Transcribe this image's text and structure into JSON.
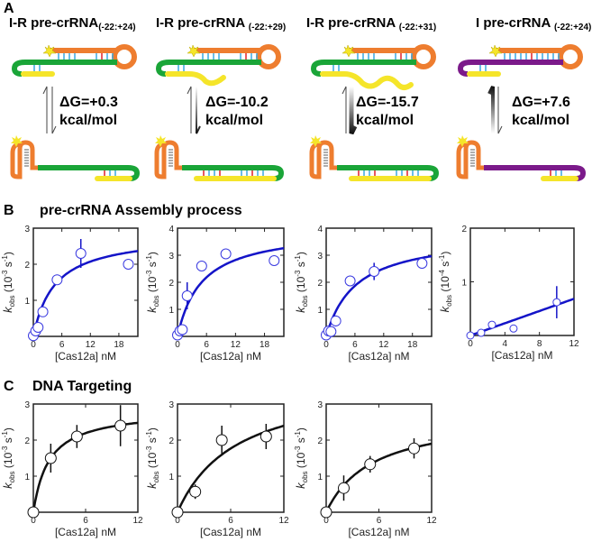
{
  "panel_a": {
    "label": "A",
    "columns": [
      {
        "title": "I-R pre-crRNA",
        "subscript": "(-22:+24)",
        "dg_line1": "ΔG=+0.3",
        "dg_line2": "kcal/mol",
        "stem_color": "#1aa538",
        "tail": "short"
      },
      {
        "title": "I-R pre-crRNA ",
        "subscript": "(-22:+29)",
        "dg_line1": "ΔG=-10.2",
        "dg_line2": "kcal/mol",
        "stem_color": "#1aa538",
        "tail": "medium"
      },
      {
        "title": "I-R pre-crRNA ",
        "subscript": "(-22:+31)",
        "dg_line1": "ΔG=-15.7",
        "dg_line2": "kcal/mol",
        "stem_color": "#1aa538",
        "tail": "long"
      },
      {
        "title": "I pre-crRNA ",
        "subscript": "(-22:+24)",
        "dg_line1": "ΔG=+7.6",
        "dg_line2": "kcal/mol",
        "stem_color": "#7b1a8a",
        "tail": "short"
      }
    ],
    "colors": {
      "orange": "#ee7d2f",
      "yellow": "#f5e52a",
      "blue_pair": "#3aa8e0",
      "red_pair": "#e0212a"
    }
  },
  "panel_b": {
    "label": "B",
    "title": "pre-crRNA Assembly process"
  },
  "panel_c": {
    "label": "C",
    "title": "DNA Targeting"
  },
  "chart_data": [
    {
      "panel": "B",
      "type": "scatter",
      "color": "#1414c8",
      "xlabel": "[Cas12a] nM",
      "ylabel": {
        "k": "k",
        "sub": "obs",
        "pre": " (10",
        "exp": "-3",
        "mid": " s",
        "exp2": "-1",
        "post": ")"
      },
      "xlim": [
        0,
        22
      ],
      "ylim": [
        0,
        3
      ],
      "xticks": [
        0,
        6,
        12,
        18
      ],
      "yticks": [
        1,
        2,
        3
      ],
      "x": [
        0,
        0.5,
        1,
        2,
        5,
        10,
        20
      ],
      "y": [
        0.02,
        0.15,
        0.25,
        0.68,
        1.57,
        2.3,
        2.0
      ],
      "yerr": [
        0,
        0,
        0,
        0,
        0,
        0.4,
        0
      ],
      "fit": {
        "model": "hyperbolic",
        "kmax": 2.85,
        "K": 4.5
      }
    },
    {
      "panel": "B",
      "type": "scatter",
      "color": "#1414c8",
      "xlabel": "[Cas12a] nM",
      "ylabel": {
        "k": "k",
        "sub": "obs",
        "pre": " (10",
        "exp": "-3",
        "mid": " s",
        "exp2": "-1",
        "post": ")"
      },
      "xlim": [
        0,
        22
      ],
      "ylim": [
        0,
        4
      ],
      "xticks": [
        0,
        6,
        12,
        18
      ],
      "yticks": [
        1,
        2,
        3,
        4
      ],
      "x": [
        0,
        0.5,
        1,
        2,
        5,
        10,
        20
      ],
      "y": [
        0.05,
        0.2,
        0.25,
        1.5,
        2.6,
        3.05,
        2.8
      ],
      "yerr": [
        0,
        0,
        0,
        0.5,
        0,
        0,
        0
      ],
      "fit": {
        "model": "hyperbolic",
        "kmax": 4.0,
        "K": 5.0
      }
    },
    {
      "panel": "B",
      "type": "scatter",
      "color": "#1414c8",
      "xlabel": "[Cas12a] nM",
      "ylabel": {
        "k": "k",
        "sub": "obs",
        "pre": " (10",
        "exp": "-3",
        "mid": " s",
        "exp2": "-1",
        "post": ")"
      },
      "xlim": [
        0,
        22
      ],
      "ylim": [
        0,
        4
      ],
      "xticks": [
        0,
        6,
        12,
        18
      ],
      "yticks": [
        1,
        2,
        3,
        4
      ],
      "x": [
        0,
        0.5,
        1,
        2,
        5,
        10,
        20
      ],
      "y": [
        0.05,
        0.2,
        0.18,
        0.57,
        2.05,
        2.4,
        2.7
      ],
      "yerr": [
        0,
        0,
        0,
        0.2,
        0,
        0.32,
        0
      ],
      "fit": {
        "model": "hyperbolic",
        "kmax": 3.8,
        "K": 6.2
      }
    },
    {
      "panel": "B",
      "type": "scatter",
      "color": "#1414c8",
      "xlabel": "[Cas12a] nM",
      "ylabel": {
        "k": "k",
        "sub": "obs",
        "pre": " (10",
        "exp": "-4",
        "mid": " s",
        "exp2": "-1",
        "post": ")"
      },
      "xlim": [
        0,
        12
      ],
      "ylim": [
        0,
        2
      ],
      "xticks": [
        0,
        4,
        8,
        12
      ],
      "yticks": [
        1,
        2
      ],
      "x": [
        0,
        1.25,
        2.5,
        5,
        10
      ],
      "y": [
        0,
        0.05,
        0.2,
        0.13,
        0.62
      ],
      "yerr": [
        0,
        0,
        0,
        0,
        0.3
      ],
      "fit": {
        "model": "linear",
        "slope": 0.057
      }
    },
    {
      "panel": "C",
      "type": "scatter",
      "color": "#111111",
      "xlabel": "[Cas12a] nM",
      "ylabel": {
        "k": "k",
        "sub": "obs",
        "pre": " (10",
        "exp": "-3",
        "mid": " s",
        "exp2": "-1",
        "post": ")"
      },
      "xlim": [
        0,
        12
      ],
      "ylim": [
        0,
        3
      ],
      "xticks": [
        0,
        6,
        12
      ],
      "yticks": [
        1,
        2,
        3
      ],
      "x": [
        0,
        2,
        5,
        10
      ],
      "y": [
        0,
        1.5,
        2.1,
        2.4
      ],
      "yerr": [
        0,
        0.4,
        0.32,
        0.57
      ],
      "fit": {
        "model": "hyperbolic",
        "kmax": 2.85,
        "K": 1.8
      }
    },
    {
      "panel": "C",
      "type": "scatter",
      "color": "#111111",
      "xlabel": "[Cas12a] nM",
      "ylabel": {
        "k": "k",
        "sub": "obs",
        "pre": " (10",
        "exp": "-3",
        "mid": " s",
        "exp2": "-1",
        "post": ")"
      },
      "xlim": [
        0,
        12
      ],
      "ylim": [
        0,
        3
      ],
      "xticks": [
        0,
        6,
        12
      ],
      "yticks": [
        1,
        2,
        3
      ],
      "x": [
        0,
        2,
        5,
        10
      ],
      "y": [
        0,
        0.57,
        2.0,
        2.1
      ],
      "yerr": [
        0,
        0.2,
        0.4,
        0.35
      ],
      "fit": {
        "model": "hyperbolic",
        "kmax": 3.73,
        "K": 6.67
      }
    },
    {
      "panel": "C",
      "type": "scatter",
      "color": "#111111",
      "xlabel": "[Cas12a] nM",
      "ylabel": {
        "k": "k",
        "sub": "obs",
        "pre": " (10",
        "exp": "-3",
        "mid": " s",
        "exp2": "-1",
        "post": ")"
      },
      "xlim": [
        0,
        12
      ],
      "ylim": [
        0,
        3
      ],
      "xticks": [
        0,
        6,
        12
      ],
      "yticks": [
        1,
        2,
        3
      ],
      "x": [
        0,
        2,
        5,
        10
      ],
      "y": [
        0,
        0.67,
        1.33,
        1.77
      ],
      "yerr": [
        0,
        0.35,
        0.23,
        0.28
      ],
      "fit": {
        "model": "hyperbolic",
        "kmax": 2.74,
        "K": 5.3
      }
    }
  ]
}
